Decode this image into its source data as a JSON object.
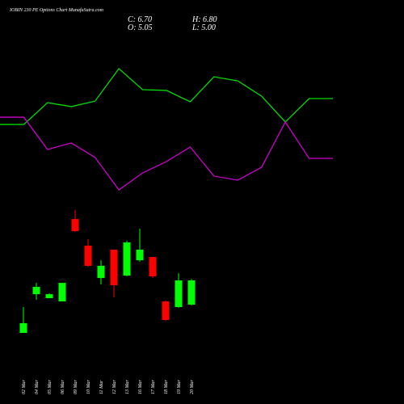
{
  "chart_data": [
    {
      "type": "candlestick",
      "title": "IOBIN 230 PE Options Chart MunafaSutra.com",
      "ohlc_labels": [
        "C: 6.70",
        "H: 6.80",
        "O: 5.05",
        "L: 5.00"
      ],
      "categories": [
        "02 Mar",
        "04 Mar",
        "05 Mar",
        "06 Mar",
        "09 Mar",
        "10 Mar",
        "11 Mar",
        "12 Mar",
        "13 Mar",
        "16 Mar",
        "17 Mar",
        "18 Mar",
        "19 Mar",
        "20 Mar"
      ],
      "open": [
        3.13,
        5.76,
        5.49,
        5.27,
        10.87,
        9.06,
        6.86,
        8.79,
        7.03,
        8.07,
        8.29,
        5.27,
        4.89,
        5.05
      ],
      "high": [
        4.89,
        6.53,
        5.82,
        6.53,
        11.48,
        9.5,
        8.07,
        8.79,
        9.39,
        10.21,
        8.29,
        5.32,
        7.19,
        6.8
      ],
      "low": [
        3.13,
        5.38,
        5.49,
        5.27,
        10.0,
        7.63,
        6.42,
        5.54,
        6.97,
        7.96,
        6.86,
        3.95,
        4.83,
        5.0
      ],
      "close": [
        3.79,
        6.26,
        5.76,
        6.53,
        10.05,
        7.69,
        7.69,
        6.37,
        9.28,
        8.79,
        6.97,
        4.01,
        6.7,
        6.7
      ],
      "up_color": "#00ff00",
      "down_color": "#ff0000",
      "ylim": [
        2.69,
        12.03
      ]
    },
    {
      "type": "line",
      "x": [
        0,
        1,
        2,
        3,
        4,
        5,
        6,
        7,
        8,
        9,
        10,
        11,
        12,
        13,
        14
      ],
      "xlim": [
        0,
        14
      ],
      "ylim": [
        0,
        100
      ],
      "series": [
        {
          "color": "#00dd00",
          "values": [
            53.3,
            53.3,
            68.3,
            65.6,
            69.4,
            91.7,
            77.2,
            76.7,
            68.9,
            86.1,
            83.3,
            72.8,
            55,
            71.1,
            71.1
          ]
        },
        {
          "color": "#cc00cc",
          "values": [
            58.3,
            58.3,
            36.1,
            40.6,
            30.6,
            8.3,
            20,
            27.8,
            37.8,
            17.8,
            15,
            23.9,
            55,
            30,
            30
          ]
        }
      ]
    }
  ]
}
